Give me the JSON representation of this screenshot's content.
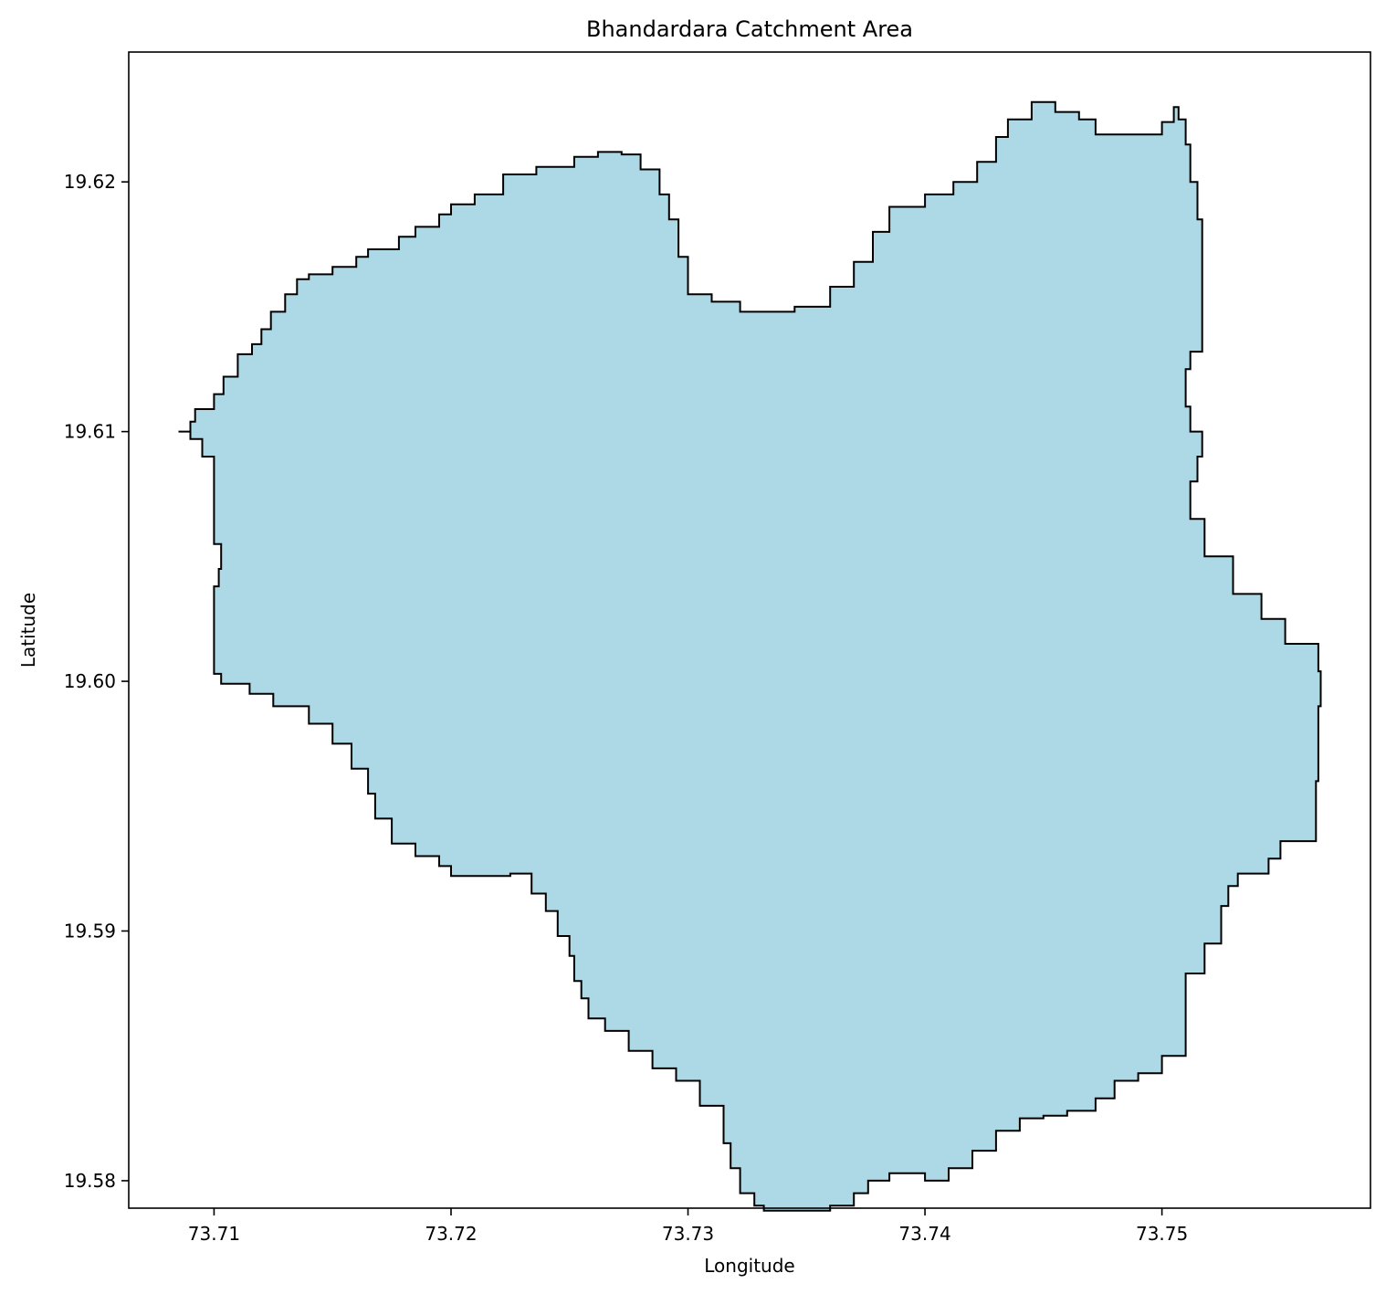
{
  "chart_data": {
    "type": "area",
    "title": "Bhandardara Catchment Area",
    "xlabel": "Longitude",
    "ylabel": "Latitude",
    "xlim": [
      73.7064,
      73.7588
    ],
    "ylim": [
      19.5789,
      19.6252
    ],
    "xticks": [
      {
        "value": 73.71,
        "label": "73.71"
      },
      {
        "value": 73.72,
        "label": "73.72"
      },
      {
        "value": 73.73,
        "label": "73.73"
      },
      {
        "value": 73.74,
        "label": "73.74"
      },
      {
        "value": 73.75,
        "label": "73.75"
      }
    ],
    "yticks": [
      {
        "value": 19.58,
        "label": "19.58"
      },
      {
        "value": 19.59,
        "label": "19.59"
      },
      {
        "value": 19.6,
        "label": "19.60"
      },
      {
        "value": 19.61,
        "label": "19.61"
      },
      {
        "value": 19.62,
        "label": "19.62"
      }
    ],
    "grid": false,
    "fill_color": "#add8e6",
    "edge_color": "#000000",
    "series": [
      {
        "points": [
          [
            73.7085,
            19.61
          ],
          [
            73.709,
            19.6104
          ],
          [
            73.7092,
            19.6109
          ],
          [
            73.71,
            19.6115
          ],
          [
            73.7104,
            19.6122
          ],
          [
            73.711,
            19.6131
          ],
          [
            73.7116,
            19.6135
          ],
          [
            73.712,
            19.6141
          ],
          [
            73.7124,
            19.6148
          ],
          [
            73.713,
            19.6155
          ],
          [
            73.7135,
            19.6161
          ],
          [
            73.714,
            19.6163
          ],
          [
            73.715,
            19.6166
          ],
          [
            73.716,
            19.617
          ],
          [
            73.7165,
            19.6173
          ],
          [
            73.7178,
            19.6178
          ],
          [
            73.7185,
            19.6182
          ],
          [
            73.7195,
            19.6187
          ],
          [
            73.72,
            19.6191
          ],
          [
            73.721,
            19.6195
          ],
          [
            73.7222,
            19.6203
          ],
          [
            73.7236,
            19.6206
          ],
          [
            73.7252,
            19.621
          ],
          [
            73.7262,
            19.6212
          ],
          [
            73.7272,
            19.6211
          ],
          [
            73.728,
            19.6205
          ],
          [
            73.7288,
            19.6195
          ],
          [
            73.7292,
            19.6185
          ],
          [
            73.7296,
            19.617
          ],
          [
            73.73,
            19.6155
          ],
          [
            73.731,
            19.6152
          ],
          [
            73.7322,
            19.6148
          ],
          [
            73.7345,
            19.615
          ],
          [
            73.736,
            19.6158
          ],
          [
            73.737,
            19.6168
          ],
          [
            73.7378,
            19.618
          ],
          [
            73.7385,
            19.619
          ],
          [
            73.74,
            19.6195
          ],
          [
            73.7412,
            19.62
          ],
          [
            73.7422,
            19.6208
          ],
          [
            73.743,
            19.6218
          ],
          [
            73.7435,
            19.6225
          ],
          [
            73.7445,
            19.6232
          ],
          [
            73.7455,
            19.6228
          ],
          [
            73.7465,
            19.6225
          ],
          [
            73.7472,
            19.6219
          ],
          [
            73.7495,
            19.6219
          ],
          [
            73.75,
            19.6224
          ],
          [
            73.7505,
            19.623
          ],
          [
            73.7507,
            19.6225
          ],
          [
            73.751,
            19.6215
          ],
          [
            73.7512,
            19.62
          ],
          [
            73.7515,
            19.6185
          ],
          [
            73.7517,
            19.616
          ],
          [
            73.7517,
            19.6132
          ],
          [
            73.7512,
            19.6125
          ],
          [
            73.751,
            19.611
          ],
          [
            73.7512,
            19.61
          ],
          [
            73.7517,
            19.609
          ],
          [
            73.7515,
            19.608
          ],
          [
            73.7512,
            19.6065
          ],
          [
            73.7518,
            19.605
          ],
          [
            73.753,
            19.6035
          ],
          [
            73.7542,
            19.6025
          ],
          [
            73.7552,
            19.6015
          ],
          [
            73.7566,
            19.6004
          ],
          [
            73.7567,
            19.599
          ],
          [
            73.7566,
            19.596
          ],
          [
            73.7565,
            19.5936
          ],
          [
            73.755,
            19.5929
          ],
          [
            73.7545,
            19.5923
          ],
          [
            73.7532,
            19.5918
          ],
          [
            73.7528,
            19.591
          ],
          [
            73.7525,
            19.5895
          ],
          [
            73.7518,
            19.5883
          ],
          [
            73.751,
            19.5875
          ],
          [
            73.751,
            19.585
          ],
          [
            73.75,
            19.5843
          ],
          [
            73.749,
            19.584
          ],
          [
            73.748,
            19.5833
          ],
          [
            73.7472,
            19.5828
          ],
          [
            73.746,
            19.5826
          ],
          [
            73.745,
            19.5825
          ],
          [
            73.744,
            19.582
          ],
          [
            73.743,
            19.5812
          ],
          [
            73.742,
            19.5805
          ],
          [
            73.741,
            19.58
          ],
          [
            73.74,
            19.5803
          ],
          [
            73.7385,
            19.58
          ],
          [
            73.7376,
            19.5795
          ],
          [
            73.737,
            19.579
          ],
          [
            73.736,
            19.5788
          ],
          [
            73.7345,
            19.5788
          ],
          [
            73.7332,
            19.579
          ],
          [
            73.7328,
            19.5795
          ],
          [
            73.7322,
            19.5805
          ],
          [
            73.7318,
            19.5815
          ],
          [
            73.7315,
            19.583
          ],
          [
            73.7305,
            19.584
          ],
          [
            73.7295,
            19.5845
          ],
          [
            73.7285,
            19.5852
          ],
          [
            73.7275,
            19.586
          ],
          [
            73.7265,
            19.5865
          ],
          [
            73.7258,
            19.5873
          ],
          [
            73.7255,
            19.588
          ],
          [
            73.7252,
            19.589
          ],
          [
            73.725,
            19.5898
          ],
          [
            73.7245,
            19.5908
          ],
          [
            73.724,
            19.5915
          ],
          [
            73.7234,
            19.5923
          ],
          [
            73.7225,
            19.5922
          ],
          [
            73.721,
            19.5922
          ],
          [
            73.72,
            19.5926
          ],
          [
            73.7195,
            19.593
          ],
          [
            73.7185,
            19.5935
          ],
          [
            73.7175,
            19.5945
          ],
          [
            73.7168,
            19.5955
          ],
          [
            73.7165,
            19.5965
          ],
          [
            73.7158,
            19.5975
          ],
          [
            73.715,
            19.5983
          ],
          [
            73.714,
            19.599
          ],
          [
            73.7125,
            19.5995
          ],
          [
            73.7115,
            19.5999
          ],
          [
            73.7103,
            19.6003
          ],
          [
            73.71,
            19.601
          ],
          [
            73.71,
            19.6038
          ],
          [
            73.7102,
            19.6045
          ],
          [
            73.7103,
            19.6055
          ],
          [
            73.71,
            19.6065
          ],
          [
            73.71,
            19.609
          ],
          [
            73.7095,
            19.6097
          ],
          [
            73.709,
            19.61
          ]
        ]
      }
    ]
  }
}
